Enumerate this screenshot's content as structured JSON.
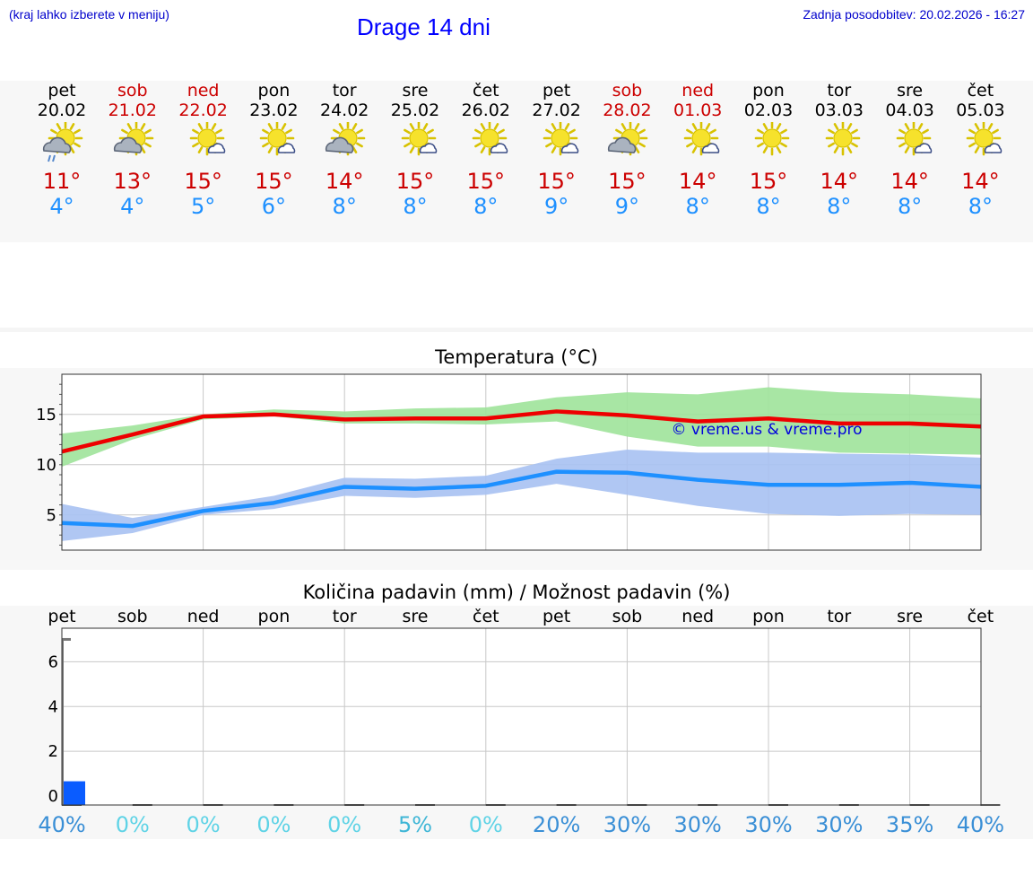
{
  "header": {
    "hint": "(kraj lahko izberete v meniju)",
    "title": "Drage 14 dni",
    "updated": "Zadnja posodobitev: 20.02.2026 - 16:27"
  },
  "days": [
    {
      "name": "pet",
      "date": "20.02",
      "weekend": false,
      "icon": "sun-cloud-rain-icon",
      "tmax": "11°",
      "tmin": "4°"
    },
    {
      "name": "sob",
      "date": "21.02",
      "weekend": true,
      "icon": "sun-cloud-icon",
      "tmax": "13°",
      "tmin": "4°"
    },
    {
      "name": "ned",
      "date": "22.02",
      "weekend": true,
      "icon": "sun-small-cloud-icon",
      "tmax": "15°",
      "tmin": "5°"
    },
    {
      "name": "pon",
      "date": "23.02",
      "weekend": false,
      "icon": "sun-small-cloud-icon",
      "tmax": "15°",
      "tmin": "6°"
    },
    {
      "name": "tor",
      "date": "24.02",
      "weekend": false,
      "icon": "sun-cloud-icon",
      "tmax": "14°",
      "tmin": "8°"
    },
    {
      "name": "sre",
      "date": "25.02",
      "weekend": false,
      "icon": "sun-small-cloud-icon",
      "tmax": "15°",
      "tmin": "8°"
    },
    {
      "name": "čet",
      "date": "26.02",
      "weekend": false,
      "icon": "sun-small-cloud-icon",
      "tmax": "15°",
      "tmin": "8°"
    },
    {
      "name": "pet",
      "date": "27.02",
      "weekend": false,
      "icon": "sun-small-cloud-icon",
      "tmax": "15°",
      "tmin": "9°"
    },
    {
      "name": "sob",
      "date": "28.02",
      "weekend": true,
      "icon": "sun-cloud-icon",
      "tmax": "15°",
      "tmin": "9°"
    },
    {
      "name": "ned",
      "date": "01.03",
      "weekend": true,
      "icon": "sun-small-cloud-icon",
      "tmax": "14°",
      "tmin": "8°"
    },
    {
      "name": "pon",
      "date": "02.03",
      "weekend": false,
      "icon": "sun-icon",
      "tmax": "15°",
      "tmin": "8°"
    },
    {
      "name": "tor",
      "date": "03.03",
      "weekend": false,
      "icon": "sun-icon",
      "tmax": "14°",
      "tmin": "8°"
    },
    {
      "name": "sre",
      "date": "04.03",
      "weekend": false,
      "icon": "sun-small-cloud-icon",
      "tmax": "14°",
      "tmin": "8°"
    },
    {
      "name": "čet",
      "date": "05.03",
      "weekend": false,
      "icon": "sun-small-cloud-icon",
      "tmax": "14°",
      "tmin": "8°"
    }
  ],
  "chart_data": [
    {
      "type": "line",
      "title": "Temperatura (°C)",
      "watermark": "© vreme.us & vreme.pro",
      "x": [
        0,
        1,
        2,
        3,
        4,
        5,
        6,
        7,
        8,
        9,
        10,
        11,
        12,
        13
      ],
      "ylim": [
        1.5,
        19
      ],
      "yticks": [
        5,
        10,
        15
      ],
      "series": [
        {
          "name": "max",
          "color": "#ee0000",
          "values": [
            11.3,
            13.0,
            14.8,
            15.0,
            14.5,
            14.6,
            14.6,
            15.3,
            14.9,
            14.3,
            14.6,
            14.1,
            14.1,
            13.8
          ],
          "band_low": [
            9.8,
            12.5,
            14.5,
            14.8,
            14.1,
            14.1,
            14.0,
            14.3,
            12.8,
            11.8,
            11.8,
            11.2,
            11.1,
            11.0
          ],
          "band_high": [
            13.1,
            13.9,
            15.0,
            15.5,
            15.3,
            15.6,
            15.7,
            16.7,
            17.2,
            17.0,
            17.7,
            17.2,
            17.0,
            16.6
          ],
          "band_color": "#9fe39a"
        },
        {
          "name": "min",
          "color": "#1e90ff",
          "values": [
            4.2,
            3.9,
            5.4,
            6.2,
            7.8,
            7.6,
            7.9,
            9.3,
            9.2,
            8.5,
            8.0,
            8.0,
            8.2,
            7.8
          ],
          "band_low": [
            2.4,
            3.2,
            5.0,
            5.6,
            6.9,
            6.7,
            7.0,
            8.1,
            7.0,
            5.9,
            5.1,
            4.9,
            5.1,
            5.0
          ],
          "band_high": [
            6.1,
            4.7,
            5.8,
            6.9,
            8.7,
            8.6,
            8.9,
            10.6,
            11.5,
            11.2,
            11.2,
            11.1,
            11.0,
            10.7
          ],
          "band_color": "#a7c1f2"
        }
      ]
    },
    {
      "type": "bar",
      "title": "Količina padavin (mm) / Možnost padavin (%)",
      "categories": [
        "pet",
        "sob",
        "ned",
        "pon",
        "tor",
        "sre",
        "čet",
        "pet",
        "sob",
        "ned",
        "pon",
        "tor",
        "sre",
        "čet"
      ],
      "values": [
        0.5,
        0,
        0,
        0,
        0,
        0,
        0,
        0,
        0,
        0,
        0,
        0,
        0,
        0
      ],
      "ylim": [
        -0.4,
        7.5
      ],
      "yticks": [
        0,
        2,
        4,
        6
      ],
      "max_marker": 7,
      "probability": [
        "40%",
        "0%",
        "0%",
        "0%",
        "0%",
        "5%",
        "0%",
        "20%",
        "30%",
        "30%",
        "30%",
        "30%",
        "35%",
        "40%"
      ],
      "bar_color": "#0a5cff"
    }
  ]
}
